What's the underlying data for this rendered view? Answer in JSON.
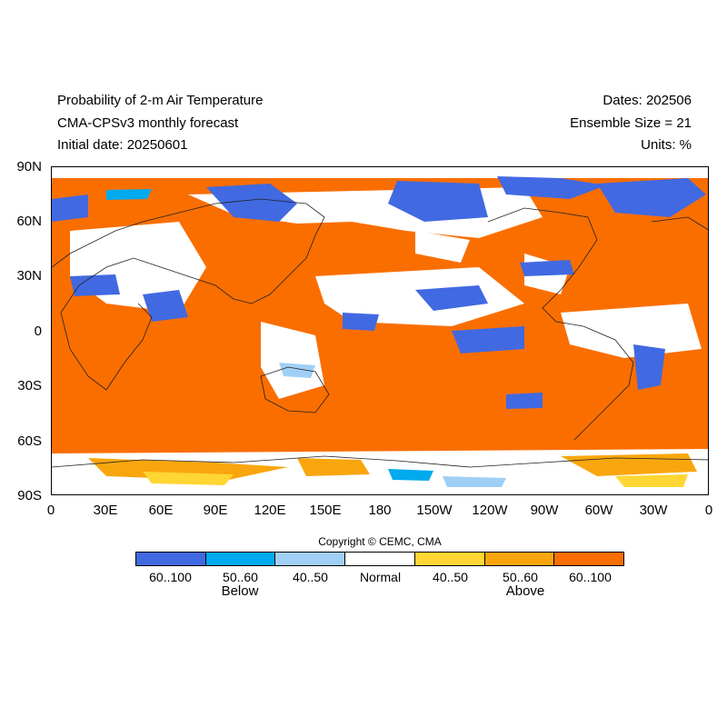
{
  "header": {
    "title_line1": "Probability of 2-m Air Temperature",
    "title_line2": "CMA-CPSv3 monthly forecast",
    "initial_date": "Initial date: 20250601",
    "dates": "Dates: 202506",
    "ensemble": "Ensemble Size = 21",
    "units": "Units: %"
  },
  "axes": {
    "lat_labels": [
      "90N",
      "60N",
      "30N",
      "0",
      "30S",
      "60S",
      "90S"
    ],
    "lon_labels": [
      "0",
      "30E",
      "60E",
      "90E",
      "120E",
      "150E",
      "180",
      "150W",
      "120W",
      "90W",
      "60W",
      "30W",
      "0"
    ]
  },
  "copyright": "Copyright © CEMC, CMA",
  "legend": {
    "items": [
      {
        "label": "60..100",
        "color": "#4169e1"
      },
      {
        "label": "50..60",
        "color": "#00aaee"
      },
      {
        "label": "40..50",
        "color": "#a0cff5"
      },
      {
        "label": "Normal",
        "color": "#ffffff"
      },
      {
        "label": "40..50",
        "color": "#ffd633"
      },
      {
        "label": "50..60",
        "color": "#f9a60e"
      },
      {
        "label": "60..100",
        "color": "#fa6e00"
      }
    ],
    "below_label": "Below",
    "above_label": "Above"
  }
}
